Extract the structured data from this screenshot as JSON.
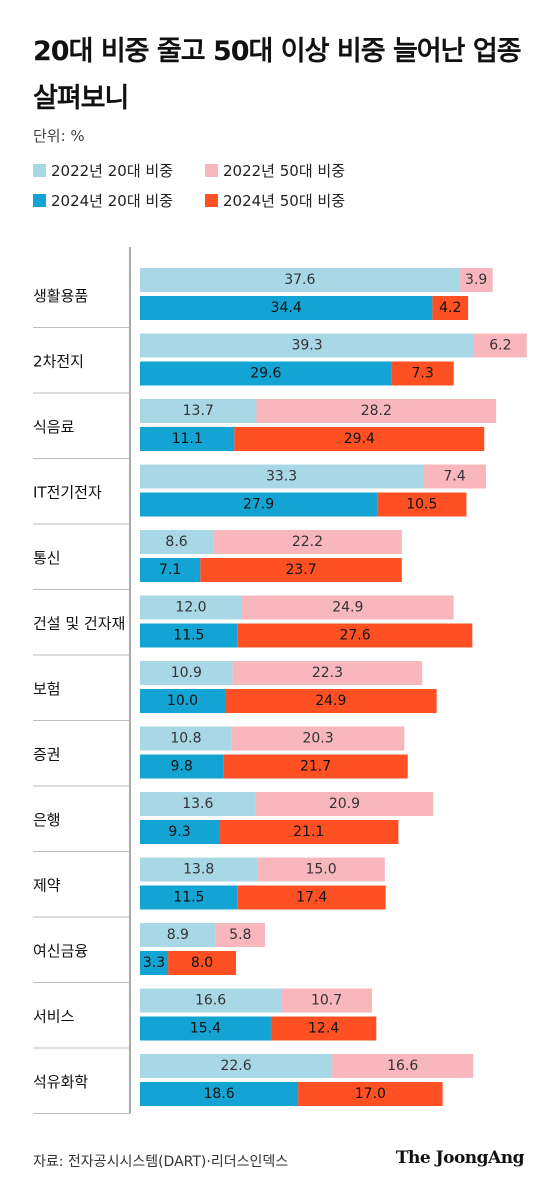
{
  "title": "20대 비중 줄고 50대 이상 비중 늘어난 업종 살펴보니",
  "unit_label": "단위: %",
  "source": "자료: 전자공시시스템(DART)·리더스인덱스",
  "brand": "The JoongAng",
  "colors": {
    "y2022_20s": "#a8d8e6",
    "y2022_50s": "#f8b7bd",
    "y2024_20s": "#14a4d4",
    "y2024_50s": "#ff5024",
    "grid": "#bbbbbb",
    "axis": "#555555"
  },
  "chart_data": {
    "type": "bar",
    "orientation": "horizontal",
    "stacked": true,
    "unit": "%",
    "title": "20대 비중 줄고 50대 이상 비중 늘어난 업종 살펴보니",
    "legend_position": "top-left",
    "categories": [
      "생활용품",
      "2차전지",
      "식음료",
      "IT전기전자",
      "통신",
      "건설 및 건자재",
      "보험",
      "증권",
      "은행",
      "제약",
      "여신금융",
      "서비스",
      "석유화학"
    ],
    "series": [
      {
        "name": "2022년 20대 비중",
        "values": [
          37.6,
          39.3,
          13.7,
          33.3,
          8.6,
          12.0,
          10.9,
          10.8,
          13.6,
          13.8,
          8.9,
          16.6,
          22.6
        ]
      },
      {
        "name": "2022년 50대 비중",
        "values": [
          3.9,
          6.2,
          28.2,
          7.4,
          22.2,
          24.9,
          22.3,
          20.3,
          20.9,
          15.0,
          5.8,
          10.7,
          16.6
        ]
      },
      {
        "name": "2024년 20대 비중",
        "values": [
          34.4,
          29.6,
          11.1,
          27.9,
          7.1,
          11.5,
          10.0,
          9.8,
          9.3,
          11.5,
          3.3,
          15.4,
          18.6
        ]
      },
      {
        "name": "2024년 50대 비중",
        "values": [
          4.2,
          7.3,
          29.4,
          10.5,
          23.7,
          27.6,
          24.9,
          21.7,
          21.1,
          17.4,
          8.0,
          12.4,
          17.0
        ]
      }
    ],
    "labels": [
      [
        "37.6",
        "3.9",
        "34.4",
        "4.2"
      ],
      [
        "39.3",
        "6.2",
        "29.6",
        "7.3"
      ],
      [
        "13.7",
        "28.2",
        "11.1",
        "29.4"
      ],
      [
        "33.3",
        "7.4",
        "27.9",
        "10.5"
      ],
      [
        "8.6",
        "22.2",
        "7.1",
        "23.7"
      ],
      [
        "12.0",
        "24.9",
        "11.5",
        "27.6"
      ],
      [
        "10.9",
        "22.3",
        "10.0",
        "24.9"
      ],
      [
        "10.8",
        "20.3",
        "9.8",
        "21.7"
      ],
      [
        "13.6",
        "20.9",
        "9.3",
        "21.1"
      ],
      [
        "13.8",
        "15.0",
        "11.5",
        "17.4"
      ],
      [
        "8.9",
        "5.8",
        "3.3",
        "8.0"
      ],
      [
        "16.6",
        "10.7",
        "15.4",
        "12.4"
      ],
      [
        "22.6",
        "16.6",
        "18.6",
        "17.0"
      ]
    ]
  }
}
